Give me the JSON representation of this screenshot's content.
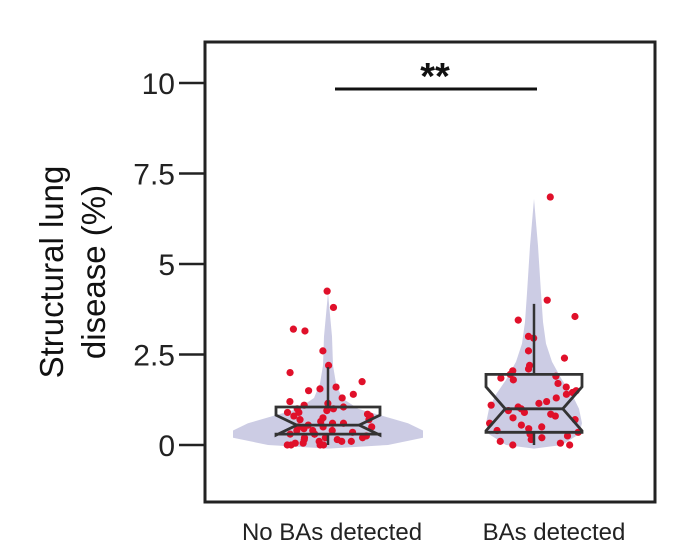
{
  "chart_data": {
    "type": "violin",
    "ylabel_line1": "Structural lung",
    "ylabel_line2": "disease (%)",
    "ylim": [
      -1.5,
      11
    ],
    "yticks": [
      0,
      2.5,
      5,
      7.5,
      10
    ],
    "ytick_labels": [
      "0",
      "2.5",
      "5",
      "7.5",
      "10"
    ],
    "grid": false,
    "significance": "**",
    "categories": [
      "No BAs detected",
      "BAs detected"
    ],
    "colors": {
      "violin": "#c9c9e3",
      "points": "#e0102a",
      "box": "#333333",
      "frame": "#222222"
    },
    "groups": [
      {
        "name": "No BAs detected",
        "violin_extent": [
          0.05,
          4.2
        ],
        "box": {
          "whisker_low": 0.0,
          "q1": 0.3,
          "median": 0.55,
          "q3": 1.05,
          "whisker_high": 2.15
        },
        "points": [
          4.25,
          3.8,
          3.2,
          3.15,
          2.6,
          2.2,
          2.0,
          1.75,
          1.6,
          1.55,
          1.5,
          1.4,
          1.3,
          1.2,
          1.15,
          1.1,
          1.05,
          1.0,
          1.0,
          0.95,
          0.9,
          0.9,
          0.85,
          0.8,
          0.8,
          0.75,
          0.7,
          0.7,
          0.65,
          0.6,
          0.6,
          0.55,
          0.5,
          0.5,
          0.5,
          0.45,
          0.4,
          0.4,
          0.4,
          0.35,
          0.3,
          0.3,
          0.3,
          0.25,
          0.2,
          0.2,
          0.2,
          0.15,
          0.15,
          0.1,
          0.1,
          0.1,
          0.05,
          0.05,
          0.0,
          0.0,
          0.0,
          0.0
        ]
      },
      {
        "name": "BAs detected",
        "violin_extent": [
          0.0,
          6.8
        ],
        "box": {
          "whisker_low": 0.0,
          "q1": 0.35,
          "median": 1.0,
          "q3": 1.95,
          "whisker_high": 3.9
        },
        "points": [
          6.85,
          4.0,
          3.55,
          3.45,
          3.0,
          2.95,
          2.6,
          2.4,
          2.2,
          2.1,
          2.05,
          1.95,
          1.9,
          1.85,
          1.8,
          1.7,
          1.6,
          1.5,
          1.45,
          1.4,
          1.3,
          1.2,
          1.15,
          1.1,
          1.05,
          1.0,
          0.95,
          0.9,
          0.85,
          0.8,
          0.75,
          0.7,
          0.6,
          0.55,
          0.5,
          0.45,
          0.4,
          0.35,
          0.3,
          0.25,
          0.2,
          0.15,
          0.1,
          0.05,
          0.0,
          0.0
        ]
      }
    ]
  }
}
